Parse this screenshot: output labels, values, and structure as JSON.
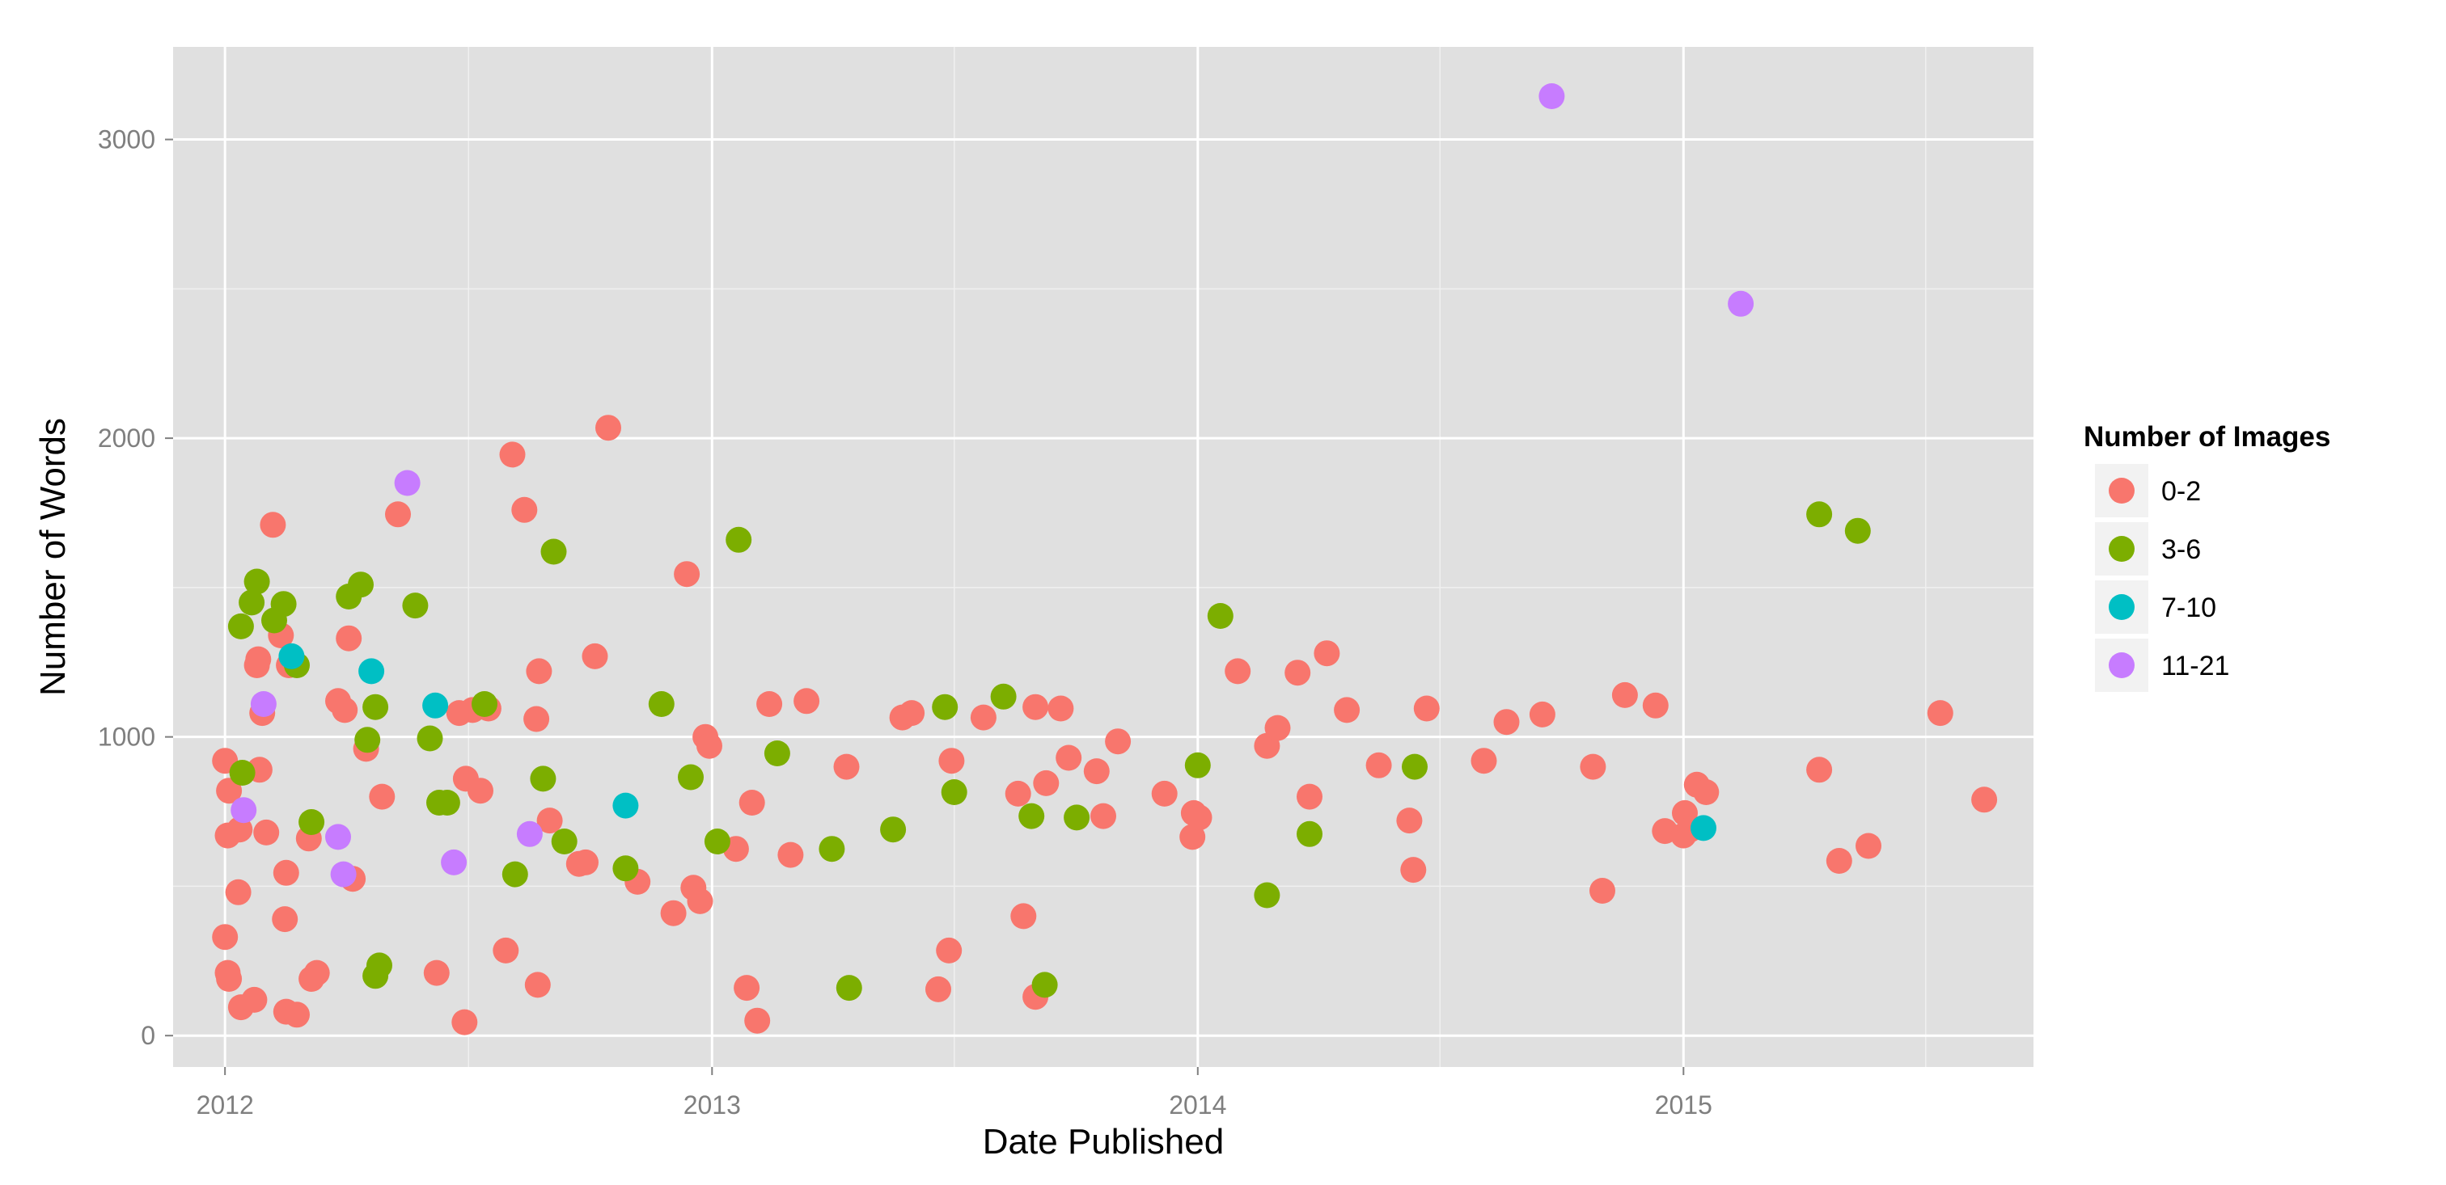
{
  "chart_data": {
    "type": "scatter",
    "xlabel": "Date Published",
    "ylabel": "Number of Words",
    "xlim": [
      "2011-11-23",
      "2015-09-21"
    ],
    "ylim": [
      -105,
      3310
    ],
    "x_ticks": [
      "2012",
      "2013",
      "2014",
      "2015"
    ],
    "y_ticks": [
      0,
      1000,
      2000,
      3000
    ],
    "grid": true,
    "background": "#e0e0e0",
    "legend": {
      "title": "Number of Images",
      "position": "right"
    },
    "series": [
      {
        "name": "0-2",
        "color": "#f8766d",
        "points": [
          [
            "2012-01-01",
            920
          ],
          [
            "2012-01-03",
            670
          ],
          [
            "2012-01-04",
            820
          ],
          [
            "2012-01-01",
            330
          ],
          [
            "2012-01-03",
            210
          ],
          [
            "2012-01-04",
            190
          ],
          [
            "2012-01-11",
            480
          ],
          [
            "2012-01-12",
            690
          ],
          [
            "2012-01-13",
            95
          ],
          [
            "2012-01-23",
            120
          ],
          [
            "2012-01-25",
            1240
          ],
          [
            "2012-01-26",
            1260
          ],
          [
            "2012-01-27",
            890
          ],
          [
            "2012-01-29",
            1080
          ],
          [
            "2012-02-01",
            680
          ],
          [
            "2012-02-06",
            1710
          ],
          [
            "2012-02-12",
            1340
          ],
          [
            "2012-02-15",
            390
          ],
          [
            "2012-02-16",
            545
          ],
          [
            "2012-02-18",
            1240
          ],
          [
            "2012-02-16",
            80
          ],
          [
            "2012-02-24",
            70
          ],
          [
            "2012-03-04",
            660
          ],
          [
            "2012-03-06",
            190
          ],
          [
            "2012-03-10",
            210
          ],
          [
            "2012-03-26",
            1120
          ],
          [
            "2012-03-31",
            1090
          ],
          [
            "2012-04-03",
            1330
          ],
          [
            "2012-04-06",
            525
          ],
          [
            "2012-04-16",
            960
          ],
          [
            "2012-04-28",
            800
          ],
          [
            "2012-05-10",
            1745
          ],
          [
            "2012-06-08",
            210
          ],
          [
            "2012-06-25",
            1080
          ],
          [
            "2012-06-30",
            860
          ],
          [
            "2012-07-05",
            1090
          ],
          [
            "2012-06-29",
            45
          ],
          [
            "2012-07-11",
            820
          ],
          [
            "2012-07-17",
            1095
          ],
          [
            "2012-07-30",
            285
          ],
          [
            "2012-08-04",
            1945
          ],
          [
            "2012-08-13",
            1760
          ],
          [
            "2012-08-22",
            1060
          ],
          [
            "2012-08-24",
            1220
          ],
          [
            "2012-08-23",
            170
          ],
          [
            "2012-09-01",
            720
          ],
          [
            "2012-09-23",
            575
          ],
          [
            "2012-09-28",
            580
          ],
          [
            "2012-10-05",
            1270
          ],
          [
            "2012-10-15",
            2035
          ],
          [
            "2012-11-06",
            515
          ],
          [
            "2012-12-03",
            410
          ],
          [
            "2012-12-18",
            495
          ],
          [
            "2012-12-23",
            450
          ],
          [
            "2012-12-27",
            1000
          ],
          [
            "2012-12-30",
            970
          ],
          [
            "2012-12-13",
            1545
          ],
          [
            "2013-01-19",
            625
          ],
          [
            "2013-01-27",
            160
          ],
          [
            "2013-01-31",
            780
          ],
          [
            "2013-02-04",
            50
          ],
          [
            "2013-02-13",
            1110
          ],
          [
            "2013-03-01",
            605
          ],
          [
            "2013-03-13",
            1120
          ],
          [
            "2013-04-12",
            900
          ],
          [
            "2013-05-24",
            1065
          ],
          [
            "2013-05-31",
            1080
          ],
          [
            "2013-06-20",
            155
          ],
          [
            "2013-06-28",
            285
          ],
          [
            "2013-06-30",
            920
          ],
          [
            "2013-07-24",
            1065
          ],
          [
            "2013-08-19",
            810
          ],
          [
            "2013-08-23",
            400
          ],
          [
            "2013-09-01",
            130
          ],
          [
            "2013-09-01",
            1100
          ],
          [
            "2013-09-09",
            845
          ],
          [
            "2013-09-20",
            1095
          ],
          [
            "2013-09-26",
            930
          ],
          [
            "2013-10-17",
            885
          ],
          [
            "2013-10-22",
            735
          ],
          [
            "2013-11-02",
            985
          ],
          [
            "2013-12-07",
            810
          ],
          [
            "2013-12-28",
            665
          ],
          [
            "2013-12-29",
            745
          ],
          [
            "2014-01-02",
            730
          ],
          [
            "2014-01-31",
            1220
          ],
          [
            "2014-02-22",
            970
          ],
          [
            "2014-03-02",
            1030
          ],
          [
            "2014-03-17",
            1215
          ],
          [
            "2014-03-26",
            800
          ],
          [
            "2014-04-08",
            1280
          ],
          [
            "2014-04-23",
            1090
          ],
          [
            "2014-05-17",
            905
          ],
          [
            "2014-06-09",
            720
          ],
          [
            "2014-06-12",
            555
          ],
          [
            "2014-06-22",
            1095
          ],
          [
            "2014-08-04",
            920
          ],
          [
            "2014-08-21",
            1050
          ],
          [
            "2014-09-17",
            1075
          ],
          [
            "2014-10-25",
            900
          ],
          [
            "2014-11-01",
            485
          ],
          [
            "2014-11-18",
            1140
          ],
          [
            "2014-12-11",
            1105
          ],
          [
            "2014-12-18",
            685
          ],
          [
            "2015-01-01",
            670
          ],
          [
            "2015-01-02",
            745
          ],
          [
            "2015-01-06",
            690
          ],
          [
            "2015-01-11",
            840
          ],
          [
            "2015-01-18",
            815
          ],
          [
            "2015-04-13",
            890
          ],
          [
            "2015-04-28",
            585
          ],
          [
            "2015-05-20",
            635
          ],
          [
            "2015-07-13",
            1080
          ],
          [
            "2015-08-15",
            790
          ]
        ]
      },
      {
        "name": "3-6",
        "color": "#7cae00",
        "points": [
          [
            "2012-01-14",
            880
          ],
          [
            "2012-01-13",
            1370
          ],
          [
            "2012-01-21",
            1450
          ],
          [
            "2012-01-25",
            1520
          ],
          [
            "2012-02-07",
            1390
          ],
          [
            "2012-02-14",
            1445
          ],
          [
            "2012-02-24",
            1240
          ],
          [
            "2012-03-06",
            715
          ],
          [
            "2012-04-03",
            1470
          ],
          [
            "2012-04-12",
            1510
          ],
          [
            "2012-04-17",
            990
          ],
          [
            "2012-04-23",
            1100
          ],
          [
            "2012-04-23",
            200
          ],
          [
            "2012-04-26",
            235
          ],
          [
            "2012-05-23",
            1440
          ],
          [
            "2012-06-03",
            995
          ],
          [
            "2012-06-10",
            780
          ],
          [
            "2012-06-16",
            780
          ],
          [
            "2012-07-14",
            1110
          ],
          [
            "2012-08-06",
            540
          ],
          [
            "2012-08-27",
            860
          ],
          [
            "2012-09-04",
            1620
          ],
          [
            "2012-09-12",
            650
          ],
          [
            "2012-10-28",
            560
          ],
          [
            "2012-11-24",
            1110
          ],
          [
            "2012-12-16",
            865
          ],
          [
            "2013-01-05",
            650
          ],
          [
            "2013-01-21",
            1660
          ],
          [
            "2013-02-19",
            945
          ],
          [
            "2013-04-01",
            625
          ],
          [
            "2013-04-14",
            160
          ],
          [
            "2013-05-17",
            690
          ],
          [
            "2013-06-25",
            1100
          ],
          [
            "2013-07-02",
            815
          ],
          [
            "2013-08-08",
            1135
          ],
          [
            "2013-08-29",
            735
          ],
          [
            "2013-09-08",
            170
          ],
          [
            "2013-10-02",
            730
          ],
          [
            "2014-01-01",
            905
          ],
          [
            "2014-01-18",
            1405
          ],
          [
            "2014-02-22",
            470
          ],
          [
            "2014-03-26",
            675
          ],
          [
            "2014-06-13",
            900
          ],
          [
            "2015-04-13",
            1745
          ],
          [
            "2015-05-12",
            1690
          ]
        ]
      },
      {
        "name": "7-10",
        "color": "#00bfc4",
        "points": [
          [
            "2012-02-20",
            1270
          ],
          [
            "2012-04-20",
            1220
          ],
          [
            "2012-06-07",
            1105
          ],
          [
            "2012-10-28",
            770
          ],
          [
            "2015-01-16",
            695
          ]
        ]
      },
      {
        "name": "11-21",
        "color": "#c77cff",
        "points": [
          [
            "2012-01-30",
            1110
          ],
          [
            "2012-01-15",
            755
          ],
          [
            "2012-03-26",
            665
          ],
          [
            "2012-03-30",
            540
          ],
          [
            "2012-05-17",
            1850
          ],
          [
            "2012-06-21",
            580
          ],
          [
            "2012-08-17",
            675
          ],
          [
            "2014-09-24",
            3145
          ],
          [
            "2015-02-13",
            2450
          ]
        ]
      }
    ]
  }
}
